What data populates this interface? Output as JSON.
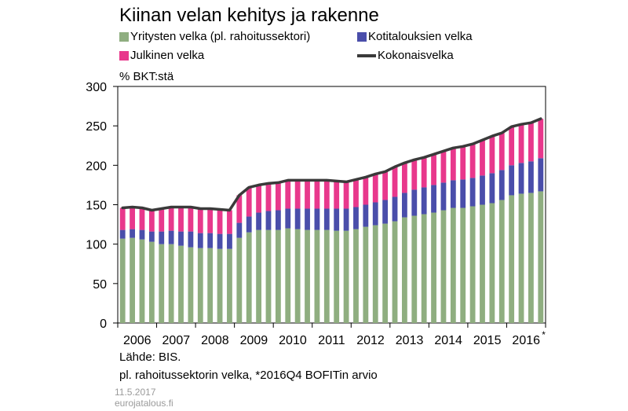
{
  "title": "Kiinan velan kehitys ja rakenne",
  "unit_label": "% BKT:stä",
  "legend": {
    "corporate": "Yritysten velka (pl. rahoitussektori)",
    "household": "Kotitalouksien velka",
    "public": "Julkinen velka",
    "total": "Kokonaisvelka"
  },
  "colors": {
    "corporate": "#8fae80",
    "household": "#4a4eaa",
    "public": "#e8388c",
    "total": "#3a3a3a"
  },
  "source": "Lähde: BIS.",
  "note": "pl. rahoitussektorin velka, *2016Q4 BOFITin arvio",
  "date": "11.5.2017",
  "site": "eurojatalous.fi",
  "chart_data": {
    "type": "bar",
    "stacked": true,
    "ylim": [
      0,
      300
    ],
    "yticks": [
      0,
      50,
      100,
      150,
      200,
      250,
      300
    ],
    "year_labels": [
      "2006",
      "2007",
      "2008",
      "2009",
      "2010",
      "2011",
      "2012",
      "2013",
      "2014",
      "2015",
      "2016"
    ],
    "year_label_suffix": [
      "",
      "",
      "",
      "",
      "",
      "",
      "",
      "",
      "",
      "",
      "*"
    ],
    "quarters": [
      "2006Q1",
      "2006Q2",
      "2006Q3",
      "2006Q4",
      "2007Q1",
      "2007Q2",
      "2007Q3",
      "2007Q4",
      "2008Q1",
      "2008Q2",
      "2008Q3",
      "2008Q4",
      "2009Q1",
      "2009Q2",
      "2009Q3",
      "2009Q4",
      "2010Q1",
      "2010Q2",
      "2010Q3",
      "2010Q4",
      "2011Q1",
      "2011Q2",
      "2011Q3",
      "2011Q4",
      "2012Q1",
      "2012Q2",
      "2012Q3",
      "2012Q4",
      "2013Q1",
      "2013Q2",
      "2013Q3",
      "2013Q4",
      "2014Q1",
      "2014Q2",
      "2014Q3",
      "2014Q4",
      "2015Q1",
      "2015Q2",
      "2015Q3",
      "2015Q4",
      "2016Q1",
      "2016Q2",
      "2016Q3",
      "2016Q4"
    ],
    "series": [
      {
        "name": "Yritysten velka (pl. rahoitussektori)",
        "key": "corporate",
        "values": [
          107,
          108,
          106,
          103,
          100,
          100,
          98,
          96,
          95,
          95,
          94,
          94,
          108,
          115,
          118,
          118,
          118,
          120,
          119,
          118,
          118,
          118,
          117,
          117,
          119,
          122,
          124,
          126,
          129,
          134,
          136,
          138,
          140,
          143,
          146,
          146,
          148,
          150,
          152,
          156,
          162,
          164,
          165,
          167
        ]
      },
      {
        "name": "Kotitalouksien velka",
        "key": "household",
        "values": [
          11,
          11,
          12,
          13,
          16,
          17,
          18,
          20,
          19,
          19,
          19,
          19,
          19,
          20,
          22,
          24,
          25,
          25,
          26,
          27,
          27,
          27,
          28,
          28,
          28,
          28,
          29,
          30,
          31,
          31,
          33,
          34,
          35,
          35,
          35,
          36,
          36,
          37,
          38,
          38,
          38,
          39,
          40,
          42
        ]
      },
      {
        "name": "Julkinen velka",
        "key": "public",
        "values": [
          28,
          28,
          28,
          27,
          29,
          30,
          31,
          31,
          31,
          31,
          31,
          30,
          35,
          37,
          35,
          35,
          35,
          36,
          36,
          36,
          36,
          36,
          35,
          34,
          35,
          35,
          36,
          36,
          38,
          38,
          38,
          38,
          39,
          40,
          41,
          42,
          43,
          45,
          47,
          47,
          49,
          49,
          49,
          50
        ]
      },
      {
        "name": "Kokonaisvelka",
        "key": "total",
        "type": "line",
        "values": [
          146,
          147,
          146,
          143,
          145,
          147,
          147,
          147,
          145,
          145,
          144,
          143,
          162,
          172,
          175,
          177,
          178,
          181,
          181,
          181,
          181,
          181,
          180,
          179,
          182,
          185,
          189,
          192,
          198,
          203,
          207,
          210,
          214,
          218,
          222,
          224,
          227,
          232,
          237,
          241,
          249,
          252,
          254,
          259
        ]
      }
    ]
  }
}
